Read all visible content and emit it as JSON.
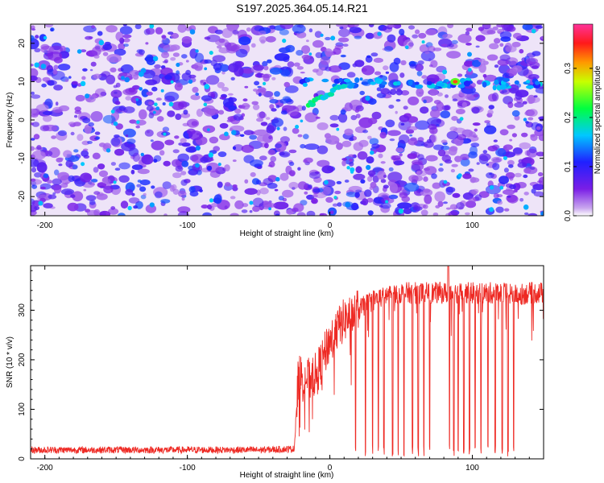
{
  "title": "S197.2025.364.05.14.R21",
  "chart_data": [
    {
      "type": "heatmap",
      "title": "S197.2025.364.05.14.R21",
      "xlabel": "Height of straight line (km)",
      "ylabel": "Frequency (Hz)",
      "xlim": [
        -210,
        150
      ],
      "ylim": [
        -25,
        25
      ],
      "xticks": [
        -200,
        -100,
        0,
        100
      ],
      "yticks": [
        -20,
        -10,
        0,
        10,
        20
      ],
      "colorbar": {
        "label": "Normalized spectral amplitude",
        "range": [
          0,
          0.39
        ],
        "ticks": [
          0.0,
          0.1,
          0.2,
          0.3
        ],
        "colormap": "rainbow (white-purple-blue-cyan-green-yellow-red-magenta)"
      },
      "grid": false,
      "features": [
        {
          "description": "diagonal ridge",
          "x": [
            -15,
            0,
            10
          ],
          "y": [
            4,
            6,
            9
          ]
        },
        {
          "description": "horizontal band",
          "x": [
            0,
            150
          ],
          "y": [
            9.5,
            9.5
          ]
        },
        {
          "description": "peak",
          "x": 88,
          "y": 10,
          "value": 0.35
        }
      ]
    },
    {
      "type": "line",
      "xlabel": "Height of straight line (km)",
      "ylabel": "SNR (10 * v/v)",
      "xlim": [
        -210,
        150
      ],
      "ylim": [
        0,
        390
      ],
      "xticks": [
        -200,
        -100,
        0,
        100
      ],
      "yticks": [
        0,
        100,
        200,
        300
      ],
      "grid": false,
      "series": [
        {
          "color": "#ee2a24",
          "x": [
            -210,
            -150,
            -100,
            -50,
            -25,
            -22,
            -15,
            -10,
            -5,
            0,
            10,
            20,
            30,
            40,
            50,
            60,
            70,
            80,
            90,
            100,
            110,
            120,
            130,
            140,
            150
          ],
          "values": [
            18,
            18,
            18,
            18,
            20,
            170,
            160,
            170,
            200,
            240,
            280,
            300,
            320,
            330,
            335,
            335,
            335,
            335,
            335,
            335,
            335,
            335,
            330,
            335,
            335
          ]
        }
      ],
      "dropouts_x": [
        18,
        25,
        30,
        34,
        38,
        44,
        48,
        52,
        58,
        62,
        66,
        70,
        84,
        87,
        90,
        94,
        98,
        102,
        106,
        111,
        116,
        121,
        125,
        129
      ]
    }
  ]
}
